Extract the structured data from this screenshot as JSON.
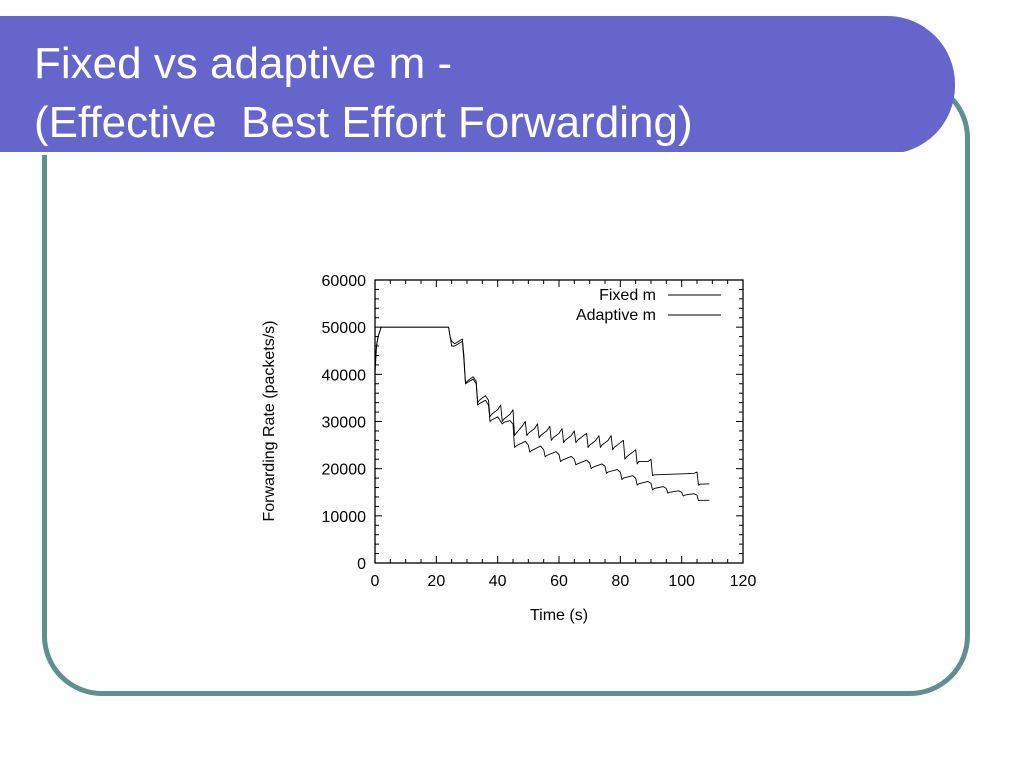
{
  "slide": {
    "title_line1": "Fixed vs adaptive m -",
    "title_line2": "(Effective  Best Effort Forwarding)",
    "banner_color": "#6565cc",
    "frame_color": "#5f9090"
  },
  "chart_data": {
    "type": "line",
    "title": "",
    "xlabel": "Time (s)",
    "ylabel": "Forwarding  Rate (packets/s)",
    "xlim": [
      0,
      120
    ],
    "ylim": [
      0,
      60000
    ],
    "xticks": [
      0,
      20,
      40,
      60,
      80,
      100,
      120
    ],
    "yticks": [
      0,
      10000,
      20000,
      30000,
      40000,
      50000,
      60000
    ],
    "grid": false,
    "legend": "top-right",
    "series": [
      {
        "name": "Fixed m",
        "color": "#000000",
        "x": [
          0,
          0.5,
          1,
          2,
          3,
          24,
          24.5,
          25,
          26,
          28.5,
          29,
          29.5,
          30,
          32,
          33,
          33.5,
          34,
          36,
          37,
          37.5,
          38,
          40,
          41,
          41.5,
          42,
          44,
          45,
          45.5,
          46,
          48,
          49,
          49.5,
          50,
          52,
          53,
          53.5,
          54,
          56,
          57,
          57.5,
          58,
          60,
          61,
          61.5,
          62,
          64,
          65,
          65.5,
          66,
          68,
          69,
          69.5,
          70,
          72,
          73,
          73.5,
          74,
          76,
          77,
          77.5,
          78,
          80,
          81,
          81.5,
          82,
          84,
          85,
          85.5,
          86,
          89,
          90,
          90.5,
          91,
          104,
          105,
          105.5,
          106,
          109
        ],
        "y": [
          42000,
          46000,
          48000,
          50000,
          50000,
          50000,
          48000,
          47000,
          46500,
          47500,
          44000,
          38000,
          38500,
          39500,
          38500,
          34000,
          34500,
          35500,
          34500,
          31000,
          31500,
          32500,
          33500,
          30000,
          30500,
          31500,
          32500,
          27000,
          27500,
          29000,
          30000,
          27000,
          27500,
          28500,
          29500,
          26500,
          27000,
          28000,
          29000,
          26000,
          26500,
          27500,
          28500,
          25500,
          26000,
          27000,
          28000,
          25500,
          26000,
          27000,
          27500,
          24500,
          25000,
          26000,
          27000,
          24500,
          25000,
          26000,
          27000,
          24000,
          24500,
          25500,
          26000,
          22000,
          22500,
          23500,
          24000,
          21000,
          21500,
          21500,
          22000,
          18500,
          18700,
          19000,
          19300,
          16500,
          16700,
          16800
        ]
      },
      {
        "name": "Adaptive m",
        "color": "#000000",
        "x": [
          0,
          0.5,
          1,
          2,
          3,
          24,
          24.5,
          25,
          26,
          28.5,
          29,
          29.5,
          30,
          32,
          33,
          33.5,
          34,
          36,
          37,
          37.5,
          38,
          40,
          41,
          41.5,
          42,
          44,
          45,
          45.5,
          46,
          49,
          50,
          50.5,
          51,
          54,
          55,
          55.5,
          56,
          59,
          60,
          60.5,
          61,
          64,
          65,
          65.5,
          66,
          69,
          70,
          70.5,
          71,
          74,
          75,
          75.5,
          76,
          79,
          80,
          80.5,
          81,
          84,
          85,
          85.5,
          86,
          89,
          90,
          90.5,
          91,
          94,
          95,
          95.5,
          96,
          99,
          100,
          100.5,
          101,
          104,
          105,
          105.5,
          106,
          109
        ],
        "y": [
          40000,
          46000,
          48000,
          50000,
          50000,
          50000,
          48000,
          46000,
          46000,
          47000,
          43000,
          38000,
          38200,
          39000,
          38000,
          33500,
          33800,
          34500,
          33500,
          30000,
          30300,
          31000,
          30000,
          29500,
          29800,
          30200,
          29500,
          24500,
          24800,
          25800,
          25000,
          23500,
          23800,
          24800,
          24000,
          22500,
          22800,
          23600,
          23000,
          21500,
          21800,
          22600,
          22000,
          20800,
          21000,
          21800,
          21200,
          20000,
          20300,
          21000,
          20500,
          19000,
          19300,
          19800,
          19300,
          17700,
          18000,
          18500,
          18000,
          16500,
          16800,
          17300,
          16900,
          15500,
          15800,
          16200,
          15800,
          14800,
          15000,
          15300,
          15000,
          14200,
          14400,
          14700,
          14400,
          13200,
          13300,
          13300
        ]
      }
    ]
  }
}
